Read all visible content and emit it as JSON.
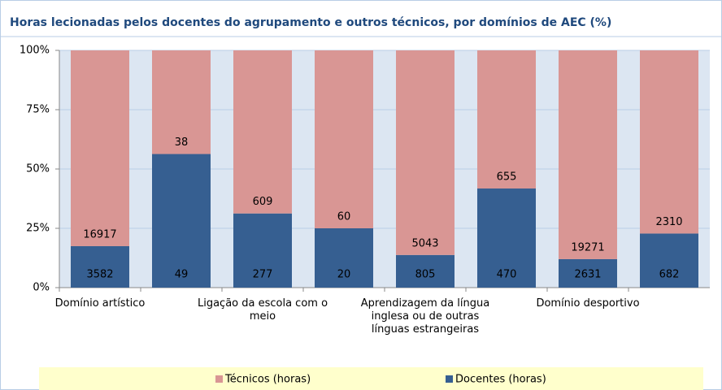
{
  "chart_data": {
    "type": "bar",
    "stacking": "percent",
    "title": "Horas lecionadas pelos docentes do agrupamento e outros técnicos, por domínios de AEC (%)",
    "categories": [
      "Domínio artístico",
      null,
      "Ligação da escola com o meio",
      null,
      "Aprendizagem da língua inglesa ou de outras línguas estrangeiras",
      null,
      "Domínio desportivo",
      null
    ],
    "series": [
      {
        "name": "Docentes (horas)",
        "color": "#365f91",
        "values": [
          3582,
          49,
          277,
          20,
          805,
          470,
          2631,
          682
        ]
      },
      {
        "name": "Técnicos (horas)",
        "color": "#d99694",
        "values": [
          16917,
          38,
          609,
          60,
          5043,
          655,
          19271,
          2310
        ]
      }
    ],
    "ylim": [
      0,
      100
    ],
    "yticks": [
      {
        "value": 0,
        "label": "0%"
      },
      {
        "value": 25,
        "label": "25%"
      },
      {
        "value": 50,
        "label": "50%"
      },
      {
        "value": 75,
        "label": "75%"
      },
      {
        "value": 100,
        "label": "100%"
      }
    ],
    "grid": true,
    "legend": "bottom"
  }
}
